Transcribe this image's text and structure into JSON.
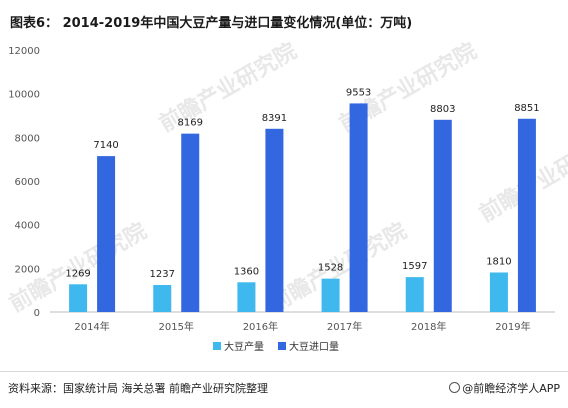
{
  "title": "图表6： 2014-2019年中国大豆产量与进口量变化情况(单位：万吨)",
  "source": "资料来源：国家统计局 海关总署 前瞻产业研究院整理",
  "brand": "@前瞻经济学人APP",
  "watermark": "前瞻产业研究院",
  "colors": {
    "production": "#3fb8ee",
    "import": "#3367e0",
    "axis_text": "#555555",
    "grid": "#e6e6e6"
  },
  "chart_data": {
    "type": "bar",
    "categories": [
      "2014年",
      "2015年",
      "2016年",
      "2017年",
      "2018年",
      "2019年"
    ],
    "series": [
      {
        "name": "大豆产量",
        "values": [
          1269,
          1237,
          1360,
          1528,
          1597,
          1810
        ]
      },
      {
        "name": "大豆进口量",
        "values": [
          7140,
          8169,
          8391,
          9553,
          8803,
          8851
        ]
      }
    ],
    "yticks": [
      0,
      2000,
      4000,
      6000,
      8000,
      10000,
      12000
    ],
    "ylim": [
      0,
      12000
    ],
    "legend": "bottom",
    "grid": false
  }
}
